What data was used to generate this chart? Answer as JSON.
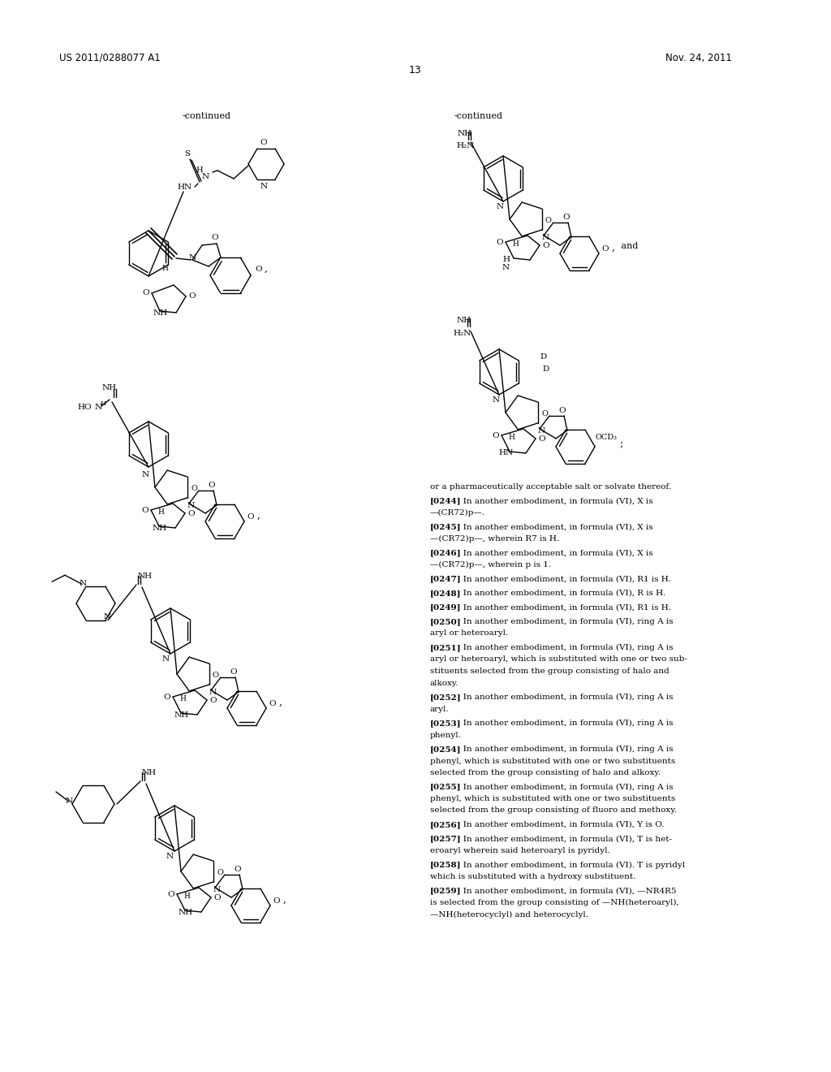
{
  "page_number": "13",
  "patent_number": "US 2011/0288077 A1",
  "patent_date": "Nov. 24, 2011",
  "background_color": "#ffffff",
  "text_color": "#000000",
  "continued_label": "-continued",
  "paragraphs": [
    {
      "ref": "",
      "text": "or a pharmaceutically acceptable salt or solvate thereof."
    },
    {
      "ref": "[0244]",
      "text": "   In another embodiment, in formula (VI), X is\n—(CR72)p—."
    },
    {
      "ref": "[0245]",
      "text": "   In another embodiment, in formula (VI), X is\n—(CR72)p—, wherein R7 is H."
    },
    {
      "ref": "[0246]",
      "text": "   In another embodiment, in formula (VI), X is\n—(CR72)p—, wherein p is 1."
    },
    {
      "ref": "[0247]",
      "text": "   In another embodiment, in formula (VI), R1 is H."
    },
    {
      "ref": "[0248]",
      "text": "   In another embodiment, in formula (VI), R is H."
    },
    {
      "ref": "[0249]",
      "text": "   In another embodiment, in formula (VI), R1 is H."
    },
    {
      "ref": "[0250]",
      "text": "   In another embodiment, in formula (VI), ring A is\naryl or heteroaryl."
    },
    {
      "ref": "[0251]",
      "text": "   In another embodiment, in formula (VI), ring A is\naryl or heteroaryl, which is substituted with one or two sub-\nstituents selected from the group consisting of halo and\nalkoxy."
    },
    {
      "ref": "[0252]",
      "text": "   In another embodiment, in formula (VI), ring A is\naryl."
    },
    {
      "ref": "[0253]",
      "text": "   In another embodiment, in formula (VI), ring A is\nphenyl."
    },
    {
      "ref": "[0254]",
      "text": "   In another embodiment, in formula (VI), ring A is\nphenyl, which is substituted with one or two substituents\nselected from the group consisting of halo and alkoxy."
    },
    {
      "ref": "[0255]",
      "text": "   In another embodiment, in formula (VI), ring A is\nphenyl, which is substituted with one or two substituents\nselected from the group consisting of fluoro and methoxy."
    },
    {
      "ref": "[0256]",
      "text": "   In another embodiment, in formula (VI), Y is O."
    },
    {
      "ref": "[0257]",
      "text": "   In another embodiment, in formula (VI), T is het-\neroaryl wherein said heteroaryl is pyridyl."
    },
    {
      "ref": "[0258]",
      "text": "   In another embodiment, in formula (VI). T is pyridyl\nwhich is substituted with a hydroxy substituent."
    },
    {
      "ref": "[0259]",
      "text": "   In another embodiment, in formula (VI), —NR4R5\nis selected from the group consisting of —NH(heteroaryl),\n—NH(heterocyclyl) and heterocyclyl."
    }
  ]
}
